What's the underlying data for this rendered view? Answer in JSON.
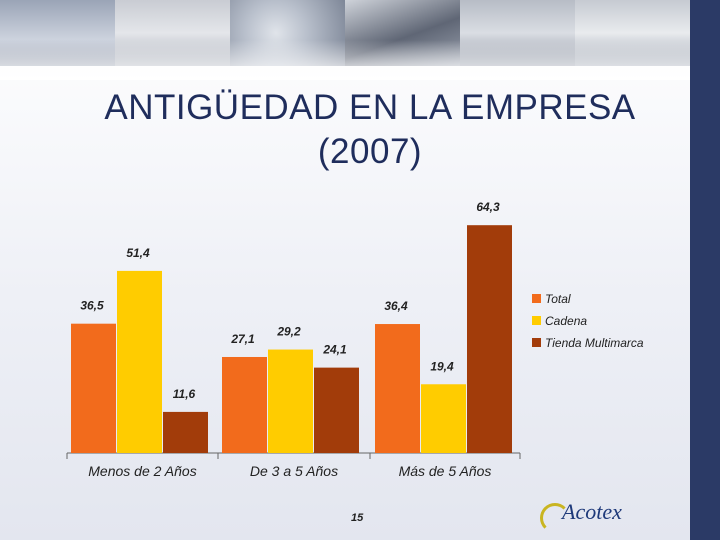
{
  "title_line1": "ANTIGÜEDAD EN LA EMPRESA",
  "title_line2": "(2007)",
  "page_number": "15",
  "logo_text": "Acotex",
  "colors": {
    "Total": "#f26b1c",
    "Cadena": "#ffcc00",
    "Tienda Multimarca": "#a23c0a",
    "title": "#1f2d5c",
    "band": "#2b3a66"
  },
  "chart_data": {
    "type": "bar",
    "title": "ANTIGÜEDAD EN LA EMPRESA (2007)",
    "categories": [
      "Menos de 2 Años",
      "De 3 a 5 Años",
      "Más de 5 Años"
    ],
    "series": [
      {
        "name": "Total",
        "values": [
          36.5,
          27.1,
          36.4
        ],
        "labels": [
          "36,5",
          "27,1",
          "36,4"
        ]
      },
      {
        "name": "Cadena",
        "values": [
          51.4,
          29.2,
          19.4
        ],
        "labels": [
          "51,4",
          "29,2",
          "19,4"
        ]
      },
      {
        "name": "Tienda Multimarca",
        "values": [
          11.6,
          24.1,
          64.3
        ],
        "labels": [
          "11,6",
          "24,1",
          "64,3"
        ]
      }
    ],
    "ylim": [
      0,
      70
    ],
    "xlabel": "",
    "ylabel": "",
    "grid": false,
    "legend": "right"
  }
}
